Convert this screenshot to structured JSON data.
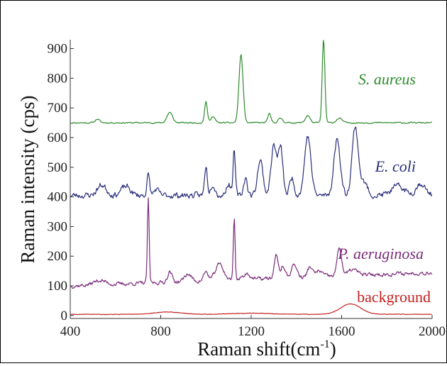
{
  "chart_data": {
    "type": "line",
    "xlabel": "Raman shift(cm",
    "xlabel_sup": "-1",
    "xlabel_tail": ")",
    "ylabel": "Raman  intensity (cps)",
    "xlim": [
      400,
      2000
    ],
    "ylim": [
      -10,
      930
    ],
    "x_ticks": [
      400,
      800,
      1200,
      1600,
      2000
    ],
    "y_ticks": [
      0,
      100,
      200,
      300,
      400,
      500,
      600,
      700,
      800,
      900
    ],
    "grid": false,
    "series": [
      {
        "name": "S. aureus",
        "color": "#2e8b2e",
        "label_italic": true,
        "baseline": 650,
        "noise": 4,
        "seed": 11,
        "peaks": [
          [
            520,
            12,
            10
          ],
          [
            840,
            35,
            12
          ],
          [
            1000,
            70,
            6
          ],
          [
            1030,
            20,
            10
          ],
          [
            1155,
            230,
            9
          ],
          [
            1280,
            30,
            7
          ],
          [
            1330,
            15,
            10
          ],
          [
            1450,
            25,
            10
          ],
          [
            1520,
            280,
            6
          ],
          [
            1590,
            15,
            12
          ]
        ]
      },
      {
        "name": "E. coli",
        "color": "#2a2f7a",
        "label_italic": true,
        "baseline": 405,
        "noise": 18,
        "seed": 23,
        "peaks": [
          [
            540,
            35,
            20
          ],
          [
            645,
            30,
            20
          ],
          [
            745,
            70,
            6
          ],
          [
            780,
            20,
            10
          ],
          [
            1000,
            100,
            6
          ],
          [
            1030,
            40,
            10
          ],
          [
            1100,
            40,
            10
          ],
          [
            1125,
            150,
            5
          ],
          [
            1175,
            60,
            8
          ],
          [
            1240,
            120,
            12
          ],
          [
            1300,
            170,
            12
          ],
          [
            1330,
            160,
            10
          ],
          [
            1380,
            60,
            10
          ],
          [
            1450,
            200,
            14
          ],
          [
            1580,
            190,
            14
          ],
          [
            1660,
            230,
            14
          ],
          [
            1700,
            40,
            15
          ],
          [
            1850,
            30,
            30
          ],
          [
            1950,
            40,
            20
          ]
        ]
      },
      {
        "name": "P. aeruginosa",
        "color": "#7a2c7a",
        "label_italic": true,
        "baseline": 100,
        "noise": 12,
        "seed": 37,
        "peaks": [
          [
            530,
            15,
            25
          ],
          [
            745,
            280,
            4
          ],
          [
            840,
            35,
            10
          ],
          [
            920,
            25,
            15
          ],
          [
            1000,
            30,
            10
          ],
          [
            1060,
            55,
            18
          ],
          [
            1125,
            210,
            4
          ],
          [
            1180,
            20,
            15
          ],
          [
            1310,
            80,
            8
          ],
          [
            1340,
            40,
            10
          ],
          [
            1390,
            45,
            12
          ],
          [
            1460,
            35,
            10
          ],
          [
            1500,
            20,
            15
          ],
          [
            1590,
            95,
            10
          ],
          [
            1650,
            20,
            20
          ]
        ],
        "slope": 45
      },
      {
        "name": "background",
        "color": "#c42020",
        "label_italic": false,
        "baseline": 4,
        "noise": 1.5,
        "seed": 5,
        "peaks": [
          [
            830,
            8,
            60
          ],
          [
            1640,
            35,
            45
          ],
          [
            1200,
            4,
            80
          ]
        ]
      }
    ]
  }
}
